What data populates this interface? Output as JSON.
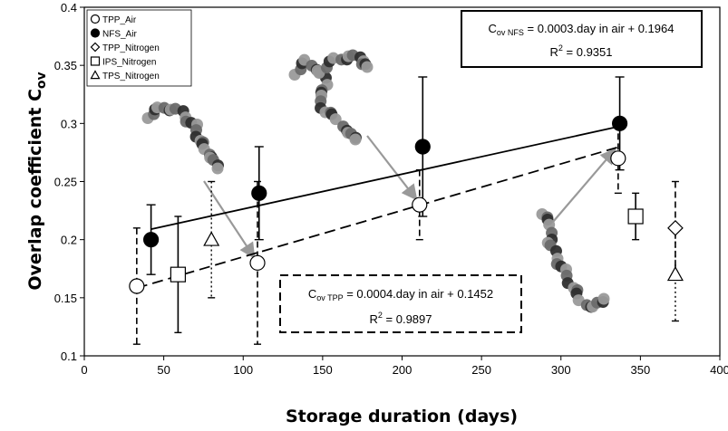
{
  "chart_data": {
    "type": "scatter",
    "xlabel": "Storage duration (days)",
    "ylabel_main": "Overlap coefficient C",
    "ylabel_sub": "ov",
    "xlim": [
      0,
      400
    ],
    "ylim": [
      0.1,
      0.4
    ],
    "x_ticks": [
      "0",
      "50",
      "100",
      "150",
      "200",
      "250",
      "300",
      "350",
      "400"
    ],
    "y_ticks": [
      "0.1",
      "0.15",
      "0.2",
      "0.25",
      "0.3",
      "0.35",
      "0.4"
    ],
    "grid": false,
    "legend_position": "top-left",
    "legend": [
      {
        "marker": "circle-open",
        "label": "TPP_Air"
      },
      {
        "marker": "circle-filled",
        "label": "NFS_Air"
      },
      {
        "marker": "diamond-open",
        "label": "TPP_Nitrogen"
      },
      {
        "marker": "square-open",
        "label": "IPS_Nitrogen"
      },
      {
        "marker": "triangle-open",
        "label": "TPS_Nitrogen"
      }
    ],
    "series": [
      {
        "name": "TPP_Air",
        "marker": "circle-open",
        "errorbar_style": "dashed",
        "x": [
          33,
          109,
          211,
          336
        ],
        "y": [
          0.16,
          0.18,
          0.23,
          0.27
        ],
        "err_low": [
          0.11,
          0.11,
          0.2,
          0.24
        ],
        "err_high": [
          0.21,
          0.25,
          0.26,
          0.3
        ]
      },
      {
        "name": "NFS_Air",
        "marker": "circle-filled",
        "errorbar_style": "solid",
        "x": [
          42,
          110,
          213,
          337
        ],
        "y": [
          0.2,
          0.24,
          0.28,
          0.3
        ],
        "err_low": [
          0.17,
          0.2,
          0.22,
          0.26
        ],
        "err_high": [
          0.23,
          0.28,
          0.34,
          0.34
        ]
      },
      {
        "name": "TPP_Nitrogen",
        "marker": "diamond-open",
        "errorbar_style": "dashed",
        "x": [
          372
        ],
        "y": [
          0.21
        ],
        "err_low": [
          0.17
        ],
        "err_high": [
          0.25
        ]
      },
      {
        "name": "IPS_Nitrogen",
        "marker": "square-open",
        "errorbar_style": "solid",
        "x": [
          59,
          347
        ],
        "y": [
          0.17,
          0.22
        ],
        "err_low": [
          0.12,
          0.2
        ],
        "err_high": [
          0.22,
          0.24
        ]
      },
      {
        "name": "TPS_Nitrogen",
        "marker": "triangle-open",
        "errorbar_style": "dotted",
        "x": [
          80,
          372
        ],
        "y": [
          0.2,
          0.17
        ],
        "err_low": [
          0.15,
          0.13
        ],
        "err_high": [
          0.25,
          0.21
        ]
      }
    ],
    "fits": [
      {
        "series": "NFS_Air",
        "style": "solid",
        "x_range": [
          42,
          337
        ],
        "slope": 0.0003,
        "intercept": 0.1964
      },
      {
        "series": "TPP_Air",
        "style": "dashed",
        "x_range": [
          33,
          336
        ],
        "slope": 0.0004,
        "intercept": 0.1452
      }
    ],
    "annotations": {
      "nfs": {
        "eq_main": "C",
        "eq_sub": "ov NFS",
        "eq_rest": " = 0.0003.day in air + 0.1964",
        "r2_prefix": "R",
        "r2_sup": "2",
        "r2_rest": " = 0.9351"
      },
      "tpp": {
        "eq_main": "C",
        "eq_sub": "ov TPP",
        "eq_rest": " = 0.0004.day in air + 0.1452",
        "r2_prefix": "R",
        "r2_sup": "2",
        "r2_rest": " = 0.9897"
      }
    },
    "colors": {
      "ink": "#000000",
      "arrow": "#999999",
      "chain_dark": "#2e2e2e",
      "chain_mid": "#6a6a6a",
      "chain_light": "#9a9a9a"
    }
  }
}
